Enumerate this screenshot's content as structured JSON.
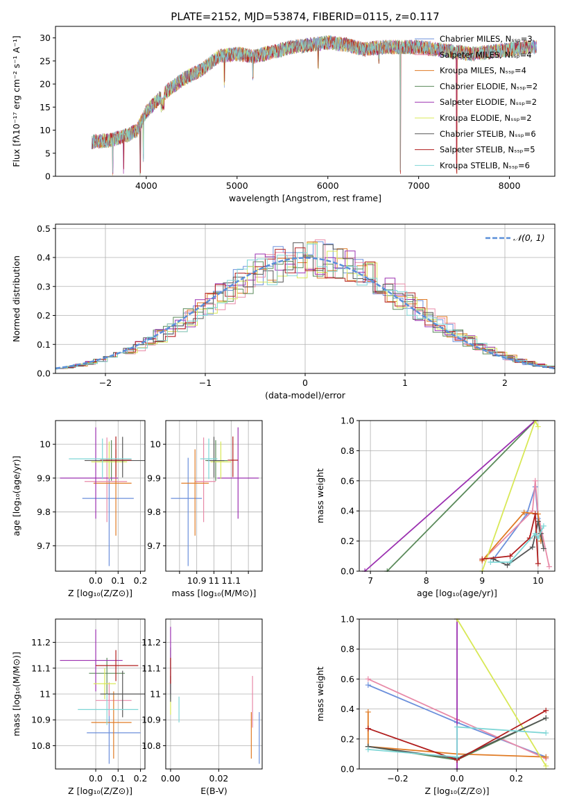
{
  "colors": [
    "#6b8fdb",
    "#e88aa8",
    "#e07a23",
    "#5a8a5a",
    "#9b30b0",
    "#d8e856",
    "#555555",
    "#b01c1c",
    "#7ed6d6"
  ],
  "chart_data": [
    {
      "id": "spectrum",
      "type": "line",
      "title": "PLATE=2152, MJD=53874, FIBERID=0115, z=0.117",
      "xlabel": "wavelength [Angstrom, rest frame]",
      "ylabel": "Flux [fλ10⁻¹⁷ erg cm⁻² s⁻¹ A⁻¹]",
      "xlim": [
        3000,
        8500
      ],
      "ylim": [
        0,
        32.5
      ],
      "xticks": [
        4000,
        5000,
        6000,
        7000,
        8000
      ],
      "yticks": [
        0,
        5,
        10,
        15,
        20,
        25,
        30
      ],
      "series_names": [
        "Chabrier MILES, Nₛₛₚ=3",
        "Salpeter MILES, Nₛₛₚ=4",
        "Kroupa MILES, Nₛₛₚ=4",
        "Chabrier ELODIE, Nₛₛₚ=2",
        "Salpeter ELODIE, Nₛₛₚ=2",
        "Kroupa ELODIE, Nₛₛₚ=2",
        "Chabrier STELIB, Nₛₛₚ=6",
        "Salpeter STELIB, Nₛₛₚ=5",
        "Kroupa STELIB, Nₛₛₚ=6"
      ],
      "continuum": {
        "x": [
          3400,
          3600,
          3800,
          3900,
          4000,
          4200,
          4400,
          4600,
          4800,
          5000,
          5200,
          5400,
          5600,
          5800,
          6000,
          6200,
          6400,
          6600,
          6800,
          7000,
          7200,
          7400,
          7600,
          7800,
          8000,
          8200,
          8300
        ],
        "y": [
          7.5,
          7.8,
          9,
          10,
          14,
          18,
          21,
          23,
          26,
          26.5,
          26,
          27,
          28,
          28.5,
          29,
          28.5,
          27.5,
          28,
          28,
          28,
          27.5,
          27,
          26.5,
          27,
          27.5,
          28,
          28
        ]
      },
      "absorption": [
        {
          "x": 3934,
          "y": 0
        },
        {
          "x": 3968,
          "y": 3
        },
        {
          "x": 4861,
          "y": 19
        },
        {
          "x": 5175,
          "y": 20
        },
        {
          "x": 5893,
          "y": 23
        },
        {
          "x": 6563,
          "y": 24
        },
        {
          "x": 6800,
          "y": 0
        },
        {
          "x": 7420,
          "y": 0
        },
        {
          "x": 3750,
          "y": 0
        },
        {
          "x": 3630,
          "y": 0
        }
      ]
    },
    {
      "id": "residuals",
      "type": "histogram",
      "xlabel": "(data-model)/error",
      "ylabel": "Normed distribution",
      "xlim": [
        -2.5,
        2.5
      ],
      "ylim": [
        0,
        0.515
      ],
      "xticks": [
        -2,
        -1,
        0,
        1,
        2
      ],
      "yticks": [
        0.0,
        0.1,
        0.2,
        0.3,
        0.4,
        0.5
      ],
      "legend": "𝒩(0, 1)",
      "legend_position": "top-right",
      "bin_width": 0.1
    },
    {
      "id": "age_vs_Z",
      "type": "errorbar",
      "xlabel": "Z [log₁₀(Z/Z⊙)]",
      "ylabel": "age  [log₁₀(age/yr)]",
      "xlim": [
        -0.18,
        0.22
      ],
      "ylim": [
        9.625,
        10.07
      ],
      "xticks": [
        0.0,
        0.1,
        0.2
      ],
      "yticks": [
        9.7,
        9.8,
        9.9,
        10.0
      ],
      "points": [
        {
          "x": 0.06,
          "y": 9.84,
          "xerr": [
            0.12,
            0.11
          ],
          "yerr": [
            0.2,
            0.12
          ]
        },
        {
          "x": 0.05,
          "y": 9.89,
          "xerr": [
            0.1,
            0.09
          ],
          "yerr": [
            0.12,
            0.13
          ]
        },
        {
          "x": 0.09,
          "y": 9.885,
          "xerr": [
            0.1,
            0.07
          ],
          "yerr": [
            0.155,
            0.1
          ]
        },
        {
          "x": 0.07,
          "y": 9.952,
          "xerr": [
            0.07,
            0.06
          ],
          "yerr": [
            0.06,
            0.06
          ]
        },
        {
          "x": 0.0,
          "y": 9.9,
          "xerr": [
            0.16,
            0.1
          ],
          "yerr": [
            0.12,
            0.15
          ]
        },
        {
          "x": 0.06,
          "y": 9.948,
          "xerr": [
            0.08,
            0.08
          ],
          "yerr": [
            0.05,
            0.06
          ]
        },
        {
          "x": 0.12,
          "y": 9.952,
          "xerr": [
            0.17,
            0.1
          ],
          "yerr": [
            0.05,
            0.07
          ]
        },
        {
          "x": 0.09,
          "y": 9.953,
          "xerr": [
            0.07,
            0.07
          ],
          "yerr": [
            0.05,
            0.07
          ]
        },
        {
          "x": 0.03,
          "y": 9.957,
          "xerr": [
            0.15,
            0.13
          ],
          "yerr": [
            0.06,
            0.06
          ]
        }
      ]
    },
    {
      "id": "age_vs_mass",
      "type": "errorbar",
      "xlabel": "mass [log₁₀(M/M⊙)]",
      "ylabel": "",
      "xlim": [
        10.72,
        11.28
      ],
      "ylim": [
        9.625,
        10.07
      ],
      "xticks": [
        10.8,
        10.9,
        11.0,
        11.1,
        11.2
      ],
      "yticks": [
        9.7,
        9.8,
        9.9,
        10.0
      ],
      "points": [
        {
          "x": 10.85,
          "y": 9.84,
          "xerr": [
            0.1,
            0.08
          ],
          "yerr": [
            0.2,
            0.12
          ]
        },
        {
          "x": 10.94,
          "y": 9.89,
          "xerr": [
            0.05,
            0.07
          ],
          "yerr": [
            0.12,
            0.13
          ]
        },
        {
          "x": 10.89,
          "y": 9.885,
          "xerr": [
            0.08,
            0.08
          ],
          "yerr": [
            0.155,
            0.1
          ]
        },
        {
          "x": 11.01,
          "y": 9.952,
          "xerr": [
            0.06,
            0.07
          ],
          "yerr": [
            0.06,
            0.06
          ]
        },
        {
          "x": 11.14,
          "y": 9.9,
          "xerr": [
            0.12,
            0.12
          ],
          "yerr": [
            0.12,
            0.15
          ]
        },
        {
          "x": 11.04,
          "y": 9.948,
          "xerr": [
            0.06,
            0.06
          ],
          "yerr": [
            0.05,
            0.06
          ]
        },
        {
          "x": 11.0,
          "y": 9.952,
          "xerr": [
            0.04,
            0.06
          ],
          "yerr": [
            0.05,
            0.07
          ]
        },
        {
          "x": 11.11,
          "y": 9.953,
          "xerr": [
            0.03,
            0.03
          ],
          "yerr": [
            0.05,
            0.07
          ]
        },
        {
          "x": 10.97,
          "y": 9.957,
          "xerr": [
            0.05,
            0.05
          ],
          "yerr": [
            0.06,
            0.06
          ]
        }
      ]
    },
    {
      "id": "mw_vs_age",
      "type": "line",
      "xlabel": "age  [log₁₀(age/yr)]",
      "ylabel": "mass weight",
      "xlim": [
        6.8,
        10.3
      ],
      "ylim": [
        0,
        1
      ],
      "xticks": [
        7,
        8,
        9,
        10
      ],
      "yticks": [
        0.0,
        0.2,
        0.4,
        0.6,
        0.8,
        1.0
      ],
      "lines": [
        {
          "x": [
            9.2,
            9.8,
            9.95,
            10.0,
            10.05
          ],
          "y": [
            0.08,
            0.38,
            0.56,
            0.35,
            0.2
          ]
        },
        {
          "x": [
            9.0,
            9.9,
            9.95,
            10.0,
            10.2
          ],
          "y": [
            0.07,
            0.4,
            0.6,
            0.38,
            0.03
          ]
        },
        {
          "x": [
            9.0,
            9.75,
            10.0,
            10.05
          ],
          "y": [
            0.07,
            0.39,
            0.38,
            0.2
          ]
        },
        {
          "x": [
            7.3,
            9.95
          ],
          "y": [
            0.0,
            1.0
          ]
        },
        {
          "x": [
            6.9,
            9.95
          ],
          "y": [
            0.0,
            1.0
          ]
        },
        {
          "x": [
            9.0,
            9.95,
            10.0
          ],
          "y": [
            0.0,
            1.0,
            0.96
          ]
        },
        {
          "x": [
            9.2,
            9.45,
            9.9,
            10.0,
            10.05,
            10.1
          ],
          "y": [
            0.08,
            0.04,
            0.16,
            0.33,
            0.25,
            0.15
          ]
        },
        {
          "x": [
            9.0,
            9.5,
            9.85,
            9.95,
            10.0
          ],
          "y": [
            0.08,
            0.1,
            0.22,
            0.38,
            0.05
          ]
        },
        {
          "x": [
            9.15,
            9.5,
            9.95,
            10.0,
            10.1
          ],
          "y": [
            0.06,
            0.06,
            0.25,
            0.22,
            0.3
          ]
        }
      ]
    },
    {
      "id": "mass_vs_Z",
      "type": "errorbar",
      "xlabel": "Z [log₁₀(Z/Z⊙)]",
      "ylabel": "mass [log₁₀(M/M⊙)]",
      "xlim": [
        -0.18,
        0.22
      ],
      "ylim": [
        10.71,
        11.29
      ],
      "xticks": [
        0.0,
        0.1,
        0.2
      ],
      "yticks": [
        10.8,
        10.9,
        11.0,
        11.1,
        11.2
      ],
      "points": [
        {
          "x": 0.06,
          "y": 10.85,
          "xerr": [
            0.1,
            0.14
          ],
          "yerr": [
            0.12,
            0.12
          ]
        },
        {
          "x": 0.06,
          "y": 10.975,
          "xerr": [
            0.06,
            0.1
          ],
          "yerr": [
            0.06,
            0.07
          ]
        },
        {
          "x": 0.08,
          "y": 10.89,
          "xerr": [
            0.1,
            0.08
          ],
          "yerr": [
            0.14,
            0.12
          ]
        },
        {
          "x": 0.05,
          "y": 11.08,
          "xerr": [
            0.08,
            0.08
          ],
          "yerr": [
            0.08,
            0.06
          ]
        },
        {
          "x": 0.0,
          "y": 11.13,
          "xerr": [
            0.16,
            0.12
          ],
          "yerr": [
            0.12,
            0.12
          ]
        },
        {
          "x": 0.04,
          "y": 11.04,
          "xerr": [
            0.05,
            0.05
          ],
          "yerr": [
            0.06,
            0.06
          ]
        },
        {
          "x": 0.12,
          "y": 11.0,
          "xerr": [
            0.1,
            0.1
          ],
          "yerr": [
            0.09,
            0.09
          ]
        },
        {
          "x": 0.09,
          "y": 11.11,
          "xerr": [
            0.09,
            0.1
          ],
          "yerr": [
            0.06,
            0.06
          ]
        },
        {
          "x": 0.05,
          "y": 10.94,
          "xerr": [
            0.13,
            0.14
          ],
          "yerr": [
            0.06,
            0.06
          ]
        }
      ]
    },
    {
      "id": "mass_vs_ebv",
      "type": "errorbar",
      "xlabel": "E(B-V)",
      "ylabel": "",
      "xlim": [
        -0.002,
        0.038
      ],
      "ylim": [
        10.71,
        11.29
      ],
      "xticks": [
        0.0,
        0.02
      ],
      "yticks": [
        10.8,
        10.9,
        11.0,
        11.1,
        11.2
      ],
      "points": [
        {
          "x": 0.0368,
          "y": 10.83,
          "xerr": [
            0,
            0
          ],
          "yerr": [
            0.1,
            0.1
          ]
        },
        {
          "x": 0.034,
          "y": 10.97,
          "xerr": [
            0,
            0
          ],
          "yerr": [
            0.1,
            0.1
          ]
        },
        {
          "x": 0.0335,
          "y": 10.84,
          "xerr": [
            0,
            0
          ],
          "yerr": [
            0.09,
            0.09
          ]
        },
        {
          "x": 0.0,
          "y": 11.08,
          "xerr": [
            0,
            0
          ],
          "yerr": [
            0.1,
            0.1
          ]
        },
        {
          "x": 0.0,
          "y": 11.13,
          "xerr": [
            0,
            0
          ],
          "yerr": [
            0.13,
            0.13
          ]
        },
        {
          "x": 0.0,
          "y": 10.95,
          "xerr": [
            0,
            0
          ],
          "yerr": [
            0.03,
            0.03
          ]
        },
        {
          "x": 0.0,
          "y": 11.02,
          "xerr": [
            0,
            0
          ],
          "yerr": [
            0.05,
            0.05
          ]
        },
        {
          "x": 0.0,
          "y": 11.09,
          "xerr": [
            0,
            0
          ],
          "yerr": [
            0.05,
            0.05
          ]
        },
        {
          "x": 0.0035,
          "y": 10.94,
          "xerr": [
            0,
            0
          ],
          "yerr": [
            0.05,
            0.05
          ]
        }
      ]
    },
    {
      "id": "mw_vs_Z",
      "type": "line",
      "xlabel": "Z [log₁₀(Z/Z⊙)]",
      "ylabel": "mass weight",
      "xlim": [
        -0.33,
        0.33
      ],
      "ylim": [
        0,
        1
      ],
      "xticks": [
        -0.2,
        0.0,
        0.2
      ],
      "yticks": [
        0.0,
        0.2,
        0.4,
        0.6,
        0.8,
        1.0
      ],
      "lines": [
        {
          "x": [
            -0.3,
            0.0,
            0.3
          ],
          "y": [
            0.56,
            0.31,
            0.08
          ]
        },
        {
          "x": [
            -0.3,
            0.0,
            0.3
          ],
          "y": [
            0.6,
            0.33,
            0.07
          ]
        },
        {
          "x": [
            -0.3,
            -0.3,
            0.0,
            0.3
          ],
          "y": [
            0.38,
            0.15,
            0.1,
            0.08
          ]
        },
        {
          "x": [
            -0.3,
            0.0,
            0.3
          ],
          "y": [
            0.15,
            0.06,
            0.34
          ]
        },
        {
          "x": [
            0.0,
            0.0
          ],
          "y": [
            0.0,
            1.0
          ]
        },
        {
          "x": [
            0.0,
            0.3
          ],
          "y": [
            1.0,
            0.02
          ]
        },
        {
          "x": [
            -0.3,
            0.0,
            0.3
          ],
          "y": [
            0.15,
            0.07,
            0.34
          ]
        },
        {
          "x": [
            -0.3,
            0.0,
            0.3
          ],
          "y": [
            0.27,
            0.06,
            0.39
          ]
        },
        {
          "x": [
            -0.3,
            0.0,
            0.0,
            0.3
          ],
          "y": [
            0.13,
            0.08,
            0.28,
            0.24
          ]
        }
      ]
    }
  ]
}
